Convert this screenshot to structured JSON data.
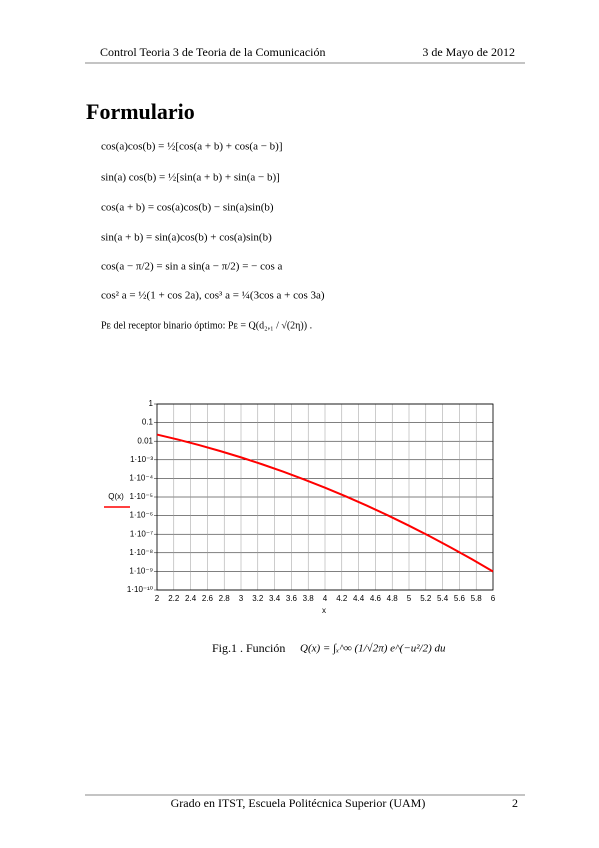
{
  "header": {
    "left": "Control Teoria 3 de Teoria de la Comunicación",
    "right": "3 de Mayo de 2012"
  },
  "title": "Formulario",
  "formulas": [
    "cos(a)cos(b) = ½[cos(a + b) + cos(a − b)]",
    "sin(a) cos(b) = ½[sin(a + b) + sin(a − b)]",
    "cos(a + b) = cos(a)cos(b) − sin(a)sin(b)",
    "sin(a + b) = sin(a)cos(b) + cos(a)sin(b)",
    "cos(a − π/2) = sin a      sin(a − π/2) = − cos a",
    "cos² a = ½(1 + cos 2a),     cos³ a = ¼(3cos a + cos 3a)",
    "Pᴇ del receptor binario óptimo:  Pᴇ = Q(d₂,₁ / √(2η)) ."
  ],
  "chart_data": {
    "type": "line",
    "log_y": true,
    "grid": true,
    "color": "#ff0000",
    "x_label": "x",
    "y_label": "Q(x)",
    "x": [
      2,
      2.25,
      2.5,
      2.75,
      3,
      3.25,
      3.5,
      3.75,
      4,
      4.25,
      4.5,
      4.75,
      5,
      5.25,
      5.5,
      5.75,
      6
    ],
    "values": [
      0.02275,
      0.01222,
      0.00621,
      0.00298,
      0.00135,
      0.000577,
      0.000233,
      8.84e-05,
      3.17e-05,
      1.07e-05,
      3.4e-06,
      1.02e-06,
      2.87e-07,
      7.6e-08,
      1.9e-08,
      4.47e-09,
      9.87e-10
    ],
    "xlim": [
      2,
      6
    ],
    "xticks": [
      2,
      2.2,
      2.4,
      2.6,
      2.8,
      3,
      3.2,
      3.4,
      3.6,
      3.8,
      4,
      4.2,
      4.4,
      4.6,
      4.8,
      5,
      5.2,
      5.4,
      5.6,
      5.8,
      6
    ],
    "ylim": [
      1e-10,
      1
    ],
    "yticks": [
      1,
      0.1,
      0.01,
      {
        "value": 0.001,
        "label": "1·10⁻³"
      },
      {
        "value": 0.0001,
        "label": "1·10⁻⁴"
      },
      {
        "value": 1e-05,
        "label": "1·10⁻⁵"
      },
      {
        "value": 1e-06,
        "label": "1·10⁻⁶"
      },
      {
        "value": 1e-07,
        "label": "1·10⁻⁷"
      },
      {
        "value": 1e-08,
        "label": "1·10⁻⁸"
      },
      {
        "value": 1e-09,
        "label": "1·10⁻⁹"
      },
      {
        "value": 1e-10,
        "label": "1·10⁻¹⁰"
      }
    ]
  },
  "caption": {
    "label": "Fig.1 . Función",
    "formula": "Q(x) = ∫ₓ^∞ (1/√2π) e^(−u²/2) du"
  },
  "footer": {
    "text": "Grado en ITST, Escuela Politécnica Superior (UAM)",
    "page": 2
  }
}
